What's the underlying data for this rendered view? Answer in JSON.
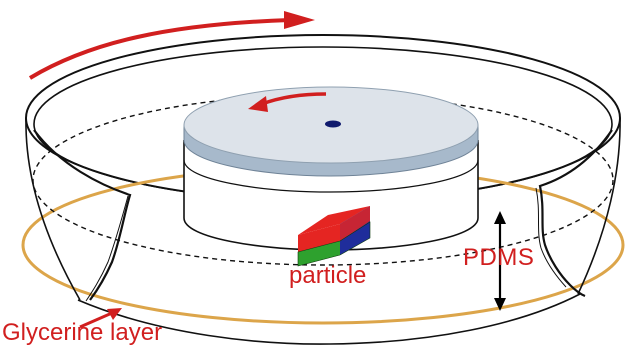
{
  "labels": {
    "particle": "particle",
    "pdms": "PDMS",
    "glycerine": "Glycerine layer"
  },
  "colors": {
    "arrow_red": "#d11f1f",
    "glycerine_gold": "#dca54a",
    "disk_top": "#dde3ea",
    "disk_rim": "#a7b9cb",
    "particle_red": "#e52522",
    "particle_green": "#2ea12e",
    "particle_blue": "#1f2d9b",
    "center_dot": "#0f1a6e"
  }
}
